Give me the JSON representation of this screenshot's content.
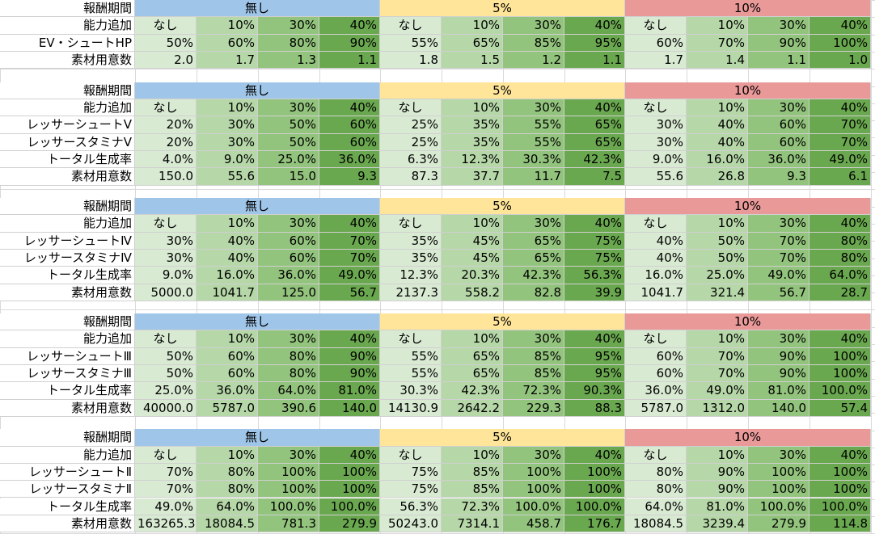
{
  "theme": {
    "gridline": "#d9d9d9",
    "band_colors": [
      "#9fc5e8",
      "#ffe599",
      "#ea9999"
    ],
    "col_colors": [
      "#d9ead3",
      "#b6d7a8",
      "#93c47d",
      "#6aa84f"
    ]
  },
  "header": {
    "reward_label": "報酬期間",
    "ability_label": "能力追加",
    "bands": [
      "無し",
      "5%",
      "10%"
    ],
    "ability_opts": [
      "なし",
      "10%",
      "30%",
      "40%"
    ]
  },
  "blocks": [
    {
      "rows": [
        {
          "label": "EV・シュートHP",
          "values": [
            "50%",
            "60%",
            "80%",
            "90%",
            "55%",
            "65%",
            "85%",
            "95%",
            "60%",
            "70%",
            "90%",
            "100%"
          ]
        },
        {
          "label": "素材用意数",
          "values": [
            "2.0",
            "1.7",
            "1.3",
            "1.1",
            "1.8",
            "1.5",
            "1.2",
            "1.1",
            "1.7",
            "1.4",
            "1.1",
            "1.0"
          ]
        }
      ]
    },
    {
      "rows": [
        {
          "label": "レッサーシュートⅤ",
          "values": [
            "20%",
            "30%",
            "50%",
            "60%",
            "25%",
            "35%",
            "55%",
            "65%",
            "30%",
            "40%",
            "60%",
            "70%"
          ]
        },
        {
          "label": "レッサースタミナⅤ",
          "values": [
            "20%",
            "30%",
            "50%",
            "60%",
            "25%",
            "35%",
            "55%",
            "65%",
            "30%",
            "40%",
            "60%",
            "70%"
          ]
        },
        {
          "label": "トータル生成率",
          "values": [
            "4.0%",
            "9.0%",
            "25.0%",
            "36.0%",
            "6.3%",
            "12.3%",
            "30.3%",
            "42.3%",
            "9.0%",
            "16.0%",
            "36.0%",
            "49.0%"
          ]
        },
        {
          "label": "素材用意数",
          "values": [
            "150.0",
            "55.6",
            "15.0",
            "9.3",
            "87.3",
            "37.7",
            "11.7",
            "7.5",
            "55.6",
            "26.8",
            "9.3",
            "6.1"
          ]
        }
      ]
    },
    {
      "rows": [
        {
          "label": "レッサーシュートⅣ",
          "values": [
            "30%",
            "40%",
            "60%",
            "70%",
            "35%",
            "45%",
            "65%",
            "75%",
            "40%",
            "50%",
            "70%",
            "80%"
          ]
        },
        {
          "label": "レッサースタミナⅣ",
          "values": [
            "30%",
            "40%",
            "60%",
            "70%",
            "35%",
            "45%",
            "65%",
            "75%",
            "40%",
            "50%",
            "70%",
            "80%"
          ]
        },
        {
          "label": "トータル生成率",
          "values": [
            "9.0%",
            "16.0%",
            "36.0%",
            "49.0%",
            "12.3%",
            "20.3%",
            "42.3%",
            "56.3%",
            "16.0%",
            "25.0%",
            "49.0%",
            "64.0%"
          ]
        },
        {
          "label": "素材用意数",
          "values": [
            "5000.0",
            "1041.7",
            "125.0",
            "56.7",
            "2137.3",
            "558.2",
            "82.8",
            "39.9",
            "1041.7",
            "321.4",
            "56.7",
            "28.7"
          ]
        }
      ]
    },
    {
      "rows": [
        {
          "label": "レッサーシュートⅢ",
          "values": [
            "50%",
            "60%",
            "80%",
            "90%",
            "55%",
            "65%",
            "85%",
            "95%",
            "60%",
            "70%",
            "90%",
            "100%"
          ]
        },
        {
          "label": "レッサースタミナⅢ",
          "values": [
            "50%",
            "60%",
            "80%",
            "90%",
            "55%",
            "65%",
            "85%",
            "95%",
            "60%",
            "70%",
            "90%",
            "100%"
          ]
        },
        {
          "label": "トータル生成率",
          "values": [
            "25.0%",
            "36.0%",
            "64.0%",
            "81.0%",
            "30.3%",
            "42.3%",
            "72.3%",
            "90.3%",
            "36.0%",
            "49.0%",
            "81.0%",
            "100.0%"
          ]
        },
        {
          "label": "素材用意数",
          "values": [
            "40000.0",
            "5787.0",
            "390.6",
            "140.0",
            "14130.9",
            "2642.2",
            "229.3",
            "88.3",
            "5787.0",
            "1312.0",
            "140.0",
            "57.4"
          ]
        }
      ]
    },
    {
      "rows": [
        {
          "label": "レッサーシュートⅡ",
          "values": [
            "70%",
            "80%",
            "100%",
            "100%",
            "75%",
            "85%",
            "100%",
            "100%",
            "80%",
            "90%",
            "100%",
            "100%"
          ]
        },
        {
          "label": "レッサースタミナⅡ",
          "values": [
            "70%",
            "80%",
            "100%",
            "100%",
            "75%",
            "85%",
            "100%",
            "100%",
            "80%",
            "90%",
            "100%",
            "100%"
          ]
        },
        {
          "label": "トータル生成率",
          "values": [
            "49.0%",
            "64.0%",
            "100.0%",
            "100.0%",
            "56.3%",
            "72.3%",
            "100.0%",
            "100.0%",
            "64.0%",
            "81.0%",
            "100.0%",
            "100.0%"
          ]
        },
        {
          "label": "素材用意数",
          "values": [
            "163265.3",
            "18084.5",
            "781.3",
            "279.9",
            "50243.0",
            "7314.1",
            "458.7",
            "176.7",
            "18084.5",
            "3239.4",
            "279.9",
            "114.8"
          ]
        }
      ]
    }
  ]
}
